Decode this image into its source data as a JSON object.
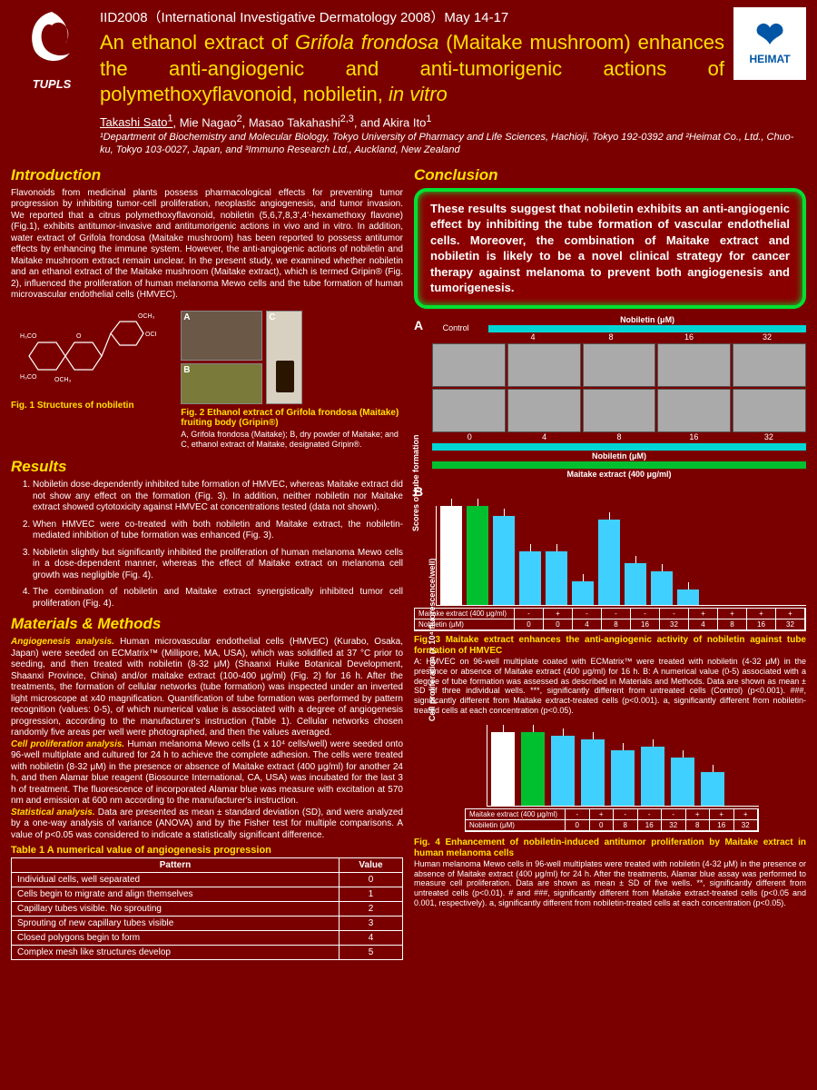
{
  "conference": "IID2008（International Investigative Dermatology 2008）May 14-17",
  "title_html": "An ethanol extract of <em>Grifola frondosa</em> (Maitake mushroom) enhances the anti-angiogenic and anti-tumorigenic actions of polymethoxyflavonoid, nobiletin, <em>in vitro</em>",
  "logo_left_label": "TUPLS",
  "logo_right_label": "HEIMAT",
  "authors_html": "<span class='underline'>Takashi Sato<sup>1</sup></span>, Mie Nagao<sup>2</sup>, Masao Takahashi<sup>2,3</sup>, and Akira Ito<sup>1</sup>",
  "affil": "¹Department of Biochemistry and Molecular Biology, Tokyo University of Pharmacy and Life Sciences, Hachioji, Tokyo 192-0392 and ²Heimat Co., Ltd., Chuo-ku, Tokyo 103-0027, Japan, and ³Immuno Research Ltd., Auckland, New Zealand",
  "headings": {
    "intro": "Introduction",
    "conc": "Conclusion",
    "results": "Results",
    "mm": "Materials & Methods"
  },
  "intro_text": "Flavonoids from medicinal plants possess pharmacological effects for preventing tumor progression by inhibiting tumor-cell proliferation, neoplastic angiogenesis, and tumor invasion. We reported that a citrus polymethoxyflavonoid, nobiletin (5,6,7,8,3',4'-hexamethoxy flavone) (Fig.1), exhibits antitumor-invasive and antitumorigenic actions in vivo and in vitro. In addition, water extract of Grifola frondosa (Maitake mushroom) has been reported to possess antitumor effects by enhancing the immune system. However, the anti-angiogenic actions of nobiletin and Maitake mushroom extract remain unclear. In the present study, we examined whether nobiletin and an ethanol extract of the Maitake mushroom (Maitake extract), which is termed Gripin® (Fig. 2), influenced the proliferation of human melanoma Mewo cells and the tube formation of human microvascular endothelial cells (HMVEC).",
  "conclusion_text": "These results suggest that nobiletin exhibits an anti-angiogenic effect by inhibiting the tube formation of vascular endothelial cells. Moreover, the combination of Maitake extract and nobiletin is likely to be a novel clinical strategy for cancer therapy against melanoma to prevent both angiogenesis and tumorigenesis.",
  "fig1_caption": "Fig. 1 Structures of nobiletin",
  "fig2_caption": "Fig. 2 Ethanol extract of Grifola frondosa (Maitake) fruiting body (Gripin®)",
  "fig2_sub": "A, Grifola frondosa (Maitake); B, dry powder of Maitake; and C, ethanol extract of Maitake, designated Gripin®.",
  "results_items": [
    "Nobiletin dose-dependently inhibited tube formation of HMVEC, whereas Maitake extract did not show any effect on the formation (Fig. 3). In addition, neither nobiletin nor Maitake extract showed cytotoxicity against HMVEC at concentrations tested (data not shown).",
    "When HMVEC were co-treated with both nobiletin and Maitake extract, the nobiletin-mediated inhibition of tube formation was enhanced (Fig. 3).",
    "Nobiletin slightly but significantly inhibited the proliferation of human melanoma Mewo cells in a dose-dependent manner, whereas the effect of Maitake extract on melanoma cell growth was negligible (Fig. 4).",
    "The combination of nobiletin and Maitake extract synergistically inhibited tumor cell proliferation (Fig. 4)."
  ],
  "mm_html": "<span class='mm-sub'>Angiogenesis analysis.</span> Human microvascular endothelial cells (HMVEC) (Kurabo, Osaka, Japan) were seeded on ECMatrix™ (Millipore, MA, USA), which was solidified at 37 °C prior to seeding, and then treated with nobiletin (8-32 μM) (Shaanxi Huike Botanical Development, Shaanxi Province, China) and/or maitake extract (100-400 μg/ml) (Fig. 2) for 16 h. After the treatments, the formation of cellular networks (tube formation) was inspected under an inverted light microscope at x40 magnification. Quantification of tube formation was performed by pattern recognition (values: 0-5), of which numerical value is associated with a degree of angiogenesis progression, according to the manufacturer's instruction (Table 1). Cellular networks chosen randomly five areas per well were photographed, and then the values averaged.<br><span class='mm-sub'>Cell proliferation analysis.</span> Human melanoma Mewo cells (1 x 10⁴ cells/well) were seeded onto 96-well multiplate and cultured for 24 h to achieve the complete adhesion. The cells were treated with nobiletin (8-32 μM) in the presence or absence of Maitake extract (400 μg/ml) for another 24 h, and then Alamar blue reagent (Biosource International, CA, USA) was incubated for the last 3 h of treatment. The fluorescence of incorporated Alamar blue was measure with excitation at 570 nm and emission at 600 nm according to the manufacturer's instruction.<br><span class='mm-sub'>Statistical analysis.</span> Data are presented as mean ± standard deviation (SD), and were analyzed by a one-way analysis of variance (ANOVA) and by the Fisher test for multiple comparisons. A value of p<0.05 was considered to indicate a statistically significant difference.",
  "table1_title": "Table 1 A numerical value of angiogenesis progression",
  "table1": {
    "headers": [
      "Pattern",
      "Value"
    ],
    "rows": [
      [
        "Individual cells, well separated",
        "0"
      ],
      [
        "Cells begin to migrate and align themselves",
        "1"
      ],
      [
        "Capillary tubes visible. No sprouting",
        "2"
      ],
      [
        "Sprouting of new capillary tubes visible",
        "3"
      ],
      [
        "Closed polygons begin to form",
        "4"
      ],
      [
        "Complex mesh like structures develop",
        "5"
      ]
    ]
  },
  "panelA": {
    "label": "A",
    "control": "Control",
    "top_label": "Nobiletin (μM)",
    "top_vals": [
      "4",
      "8",
      "16",
      "32"
    ],
    "bot_vals": [
      "0",
      "4",
      "8",
      "16",
      "32"
    ],
    "bot_label1": "Nobiletin (μM)",
    "bot_label2": "Maitake extract (400 μg/ml)",
    "colors": {
      "nob_bar": "#00d5d5",
      "mai_bar": "#00c030",
      "cell_bg": "#aaaaaa"
    }
  },
  "panelB": {
    "label": "B",
    "ylabel": "Scores of tube formation",
    "ymax": 5,
    "bars": [
      {
        "h": 5.0,
        "color": "#ffffff"
      },
      {
        "h": 5.0,
        "color": "#00c030"
      },
      {
        "h": 4.5,
        "color": "#40d0ff"
      },
      {
        "h": 2.7,
        "color": "#40d0ff"
      },
      {
        "h": 2.7,
        "color": "#40d0ff"
      },
      {
        "h": 1.2,
        "color": "#40d0ff"
      },
      {
        "h": 4.3,
        "color": "#40d0ff"
      },
      {
        "h": 2.1,
        "color": "#40d0ff"
      },
      {
        "h": 1.7,
        "color": "#40d0ff"
      },
      {
        "h": 0.8,
        "color": "#40d0ff"
      }
    ],
    "cond_rows": [
      [
        "Maitake extract (400 μg/ml)",
        "-",
        "+",
        "-",
        "-",
        "-",
        "-",
        "+",
        "+",
        "+",
        "+"
      ],
      [
        "Nobiletin (μM)",
        "0",
        "0",
        "4",
        "8",
        "16",
        "32",
        "4",
        "8",
        "16",
        "32"
      ]
    ]
  },
  "fig3_title": "Fig. 3 Maitake extract enhances the anti-angiogenic activity of nobiletin against tube formation of HMVEC",
  "fig3_body": "A: HMVEC on 96-well multiplate coated with ECMatrix™ were treated with nobiletin (4-32 μM) in the presence or absence of Maitake extract (400 μg/ml) for 16 h. B: A numerical value (0-5) associated with a degree of tube formation was assessed as described in Materials and Methods. Data are shown as mean ± SD of three individual wells. ***, significantly different from untreated cells (Control) (p<0.001). ###, significantly different from Maitake extract-treated cells (p<0.001). a, significantly different from nobiletin-treated cells at each concentration (p<0.05).",
  "panelC": {
    "ylabel": "Cell proliferation (x 10⁴ fluorescence/well)",
    "ymax": 2.2,
    "bars": [
      {
        "h": 2.0,
        "color": "#ffffff"
      },
      {
        "h": 2.0,
        "color": "#00c030"
      },
      {
        "h": 1.9,
        "color": "#40d0ff"
      },
      {
        "h": 1.8,
        "color": "#40d0ff"
      },
      {
        "h": 1.5,
        "color": "#40d0ff"
      },
      {
        "h": 1.6,
        "color": "#40d0ff"
      },
      {
        "h": 1.3,
        "color": "#40d0ff"
      },
      {
        "h": 0.9,
        "color": "#40d0ff"
      }
    ],
    "cond_rows": [
      [
        "Maitake extract (400 μg/ml)",
        "-",
        "+",
        "-",
        "-",
        "-",
        "+",
        "+",
        "+"
      ],
      [
        "Nobiletin (μM)",
        "0",
        "0",
        "8",
        "16",
        "32",
        "8",
        "16",
        "32"
      ]
    ]
  },
  "fig4_title": "Fig. 4 Enhancement of nobiletin-induced antitumor proliferation by Maitake extract in human melanoma cells",
  "fig4_body": "Human melanoma Mewo cells in 96-well multiplates were treated with nobiletin (4-32 μM) in the presence or absence of Maitake extract (400 μg/ml) for 24 h. After the treatments, Alamar blue assay was performed to measure cell proliferation. Data are shown as mean ± SD of five wells. **, significantly different from untreated cells (p<0.01). # and ###, significantly different from Maitake extract-treated cells (p<0.05 and 0.001, respectively). a, significantly different from nobiletin-treated cells at each concentration (p<0.05)."
}
